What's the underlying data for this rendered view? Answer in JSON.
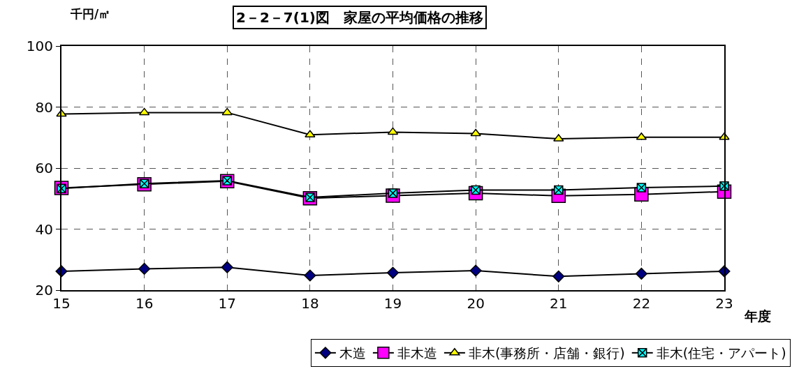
{
  "chart_data": {
    "type": "line",
    "title": "2－2－7(1)図　家屋の平均価格の推移",
    "xlabel": "年度",
    "ylabel": "千円/㎡",
    "x": [
      15,
      16,
      17,
      18,
      19,
      20,
      21,
      22,
      23
    ],
    "xlim": [
      15,
      23
    ],
    "xticks": [
      15,
      16,
      17,
      18,
      19,
      20,
      21,
      22,
      23
    ],
    "ylim": [
      20,
      100
    ],
    "yticks": [
      20,
      40,
      60,
      80,
      100
    ],
    "grid": true,
    "legend": "bottom",
    "line_style": "solid",
    "series": [
      {
        "name": "木造",
        "color": "#000080",
        "marker": "diamond",
        "values": [
          26.2,
          27.0,
          27.5,
          24.8,
          25.7,
          26.4,
          24.5,
          25.4,
          26.2
        ]
      },
      {
        "name": "非木造",
        "color": "#ff00ff",
        "marker": "square",
        "values": [
          53.5,
          54.7,
          55.7,
          50.1,
          51.0,
          51.8,
          50.9,
          51.4,
          52.3
        ]
      },
      {
        "name": "非木(事務所・店舗・銀行)",
        "color": "#ffff00",
        "marker": "triangle",
        "values": [
          77.7,
          78.2,
          78.2,
          70.9,
          71.8,
          71.3,
          69.6,
          70.1,
          70.1
        ]
      },
      {
        "name": "非木(住宅・アパート)",
        "color": "#00ffff",
        "marker": "cross",
        "values": [
          53.3,
          54.9,
          55.9,
          50.4,
          51.8,
          52.8,
          52.8,
          53.6,
          54.1
        ]
      }
    ]
  }
}
